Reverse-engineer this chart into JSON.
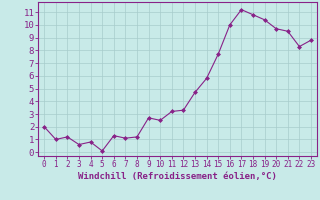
{
  "x": [
    0,
    1,
    2,
    3,
    4,
    5,
    6,
    7,
    8,
    9,
    10,
    11,
    12,
    13,
    14,
    15,
    16,
    17,
    18,
    19,
    20,
    21,
    22,
    23
  ],
  "y": [
    2.0,
    1.0,
    1.2,
    0.6,
    0.8,
    0.1,
    1.3,
    1.1,
    1.2,
    2.7,
    2.5,
    3.2,
    3.3,
    4.7,
    5.8,
    7.7,
    10.0,
    11.2,
    10.8,
    10.4,
    9.7,
    9.5,
    8.3,
    8.8
  ],
  "line_color": "#882288",
  "marker": "D",
  "markersize": 2.0,
  "linewidth": 0.8,
  "background_color": "#c8eae8",
  "grid_color": "#a8cccc",
  "xlabel": "Windchill (Refroidissement éolien,°C)",
  "ylim": [
    -0.3,
    11.8
  ],
  "xlim": [
    -0.5,
    23.5
  ],
  "yticks": [
    0,
    1,
    2,
    3,
    4,
    5,
    6,
    7,
    8,
    9,
    10,
    11
  ],
  "xticks": [
    0,
    1,
    2,
    3,
    4,
    5,
    6,
    7,
    8,
    9,
    10,
    11,
    12,
    13,
    14,
    15,
    16,
    17,
    18,
    19,
    20,
    21,
    22,
    23
  ],
  "tick_color": "#882288",
  "label_color": "#882288",
  "axis_color": "#882288",
  "xlabel_fontsize": 6.5,
  "ytick_fontsize": 6.5,
  "xtick_fontsize": 5.5
}
